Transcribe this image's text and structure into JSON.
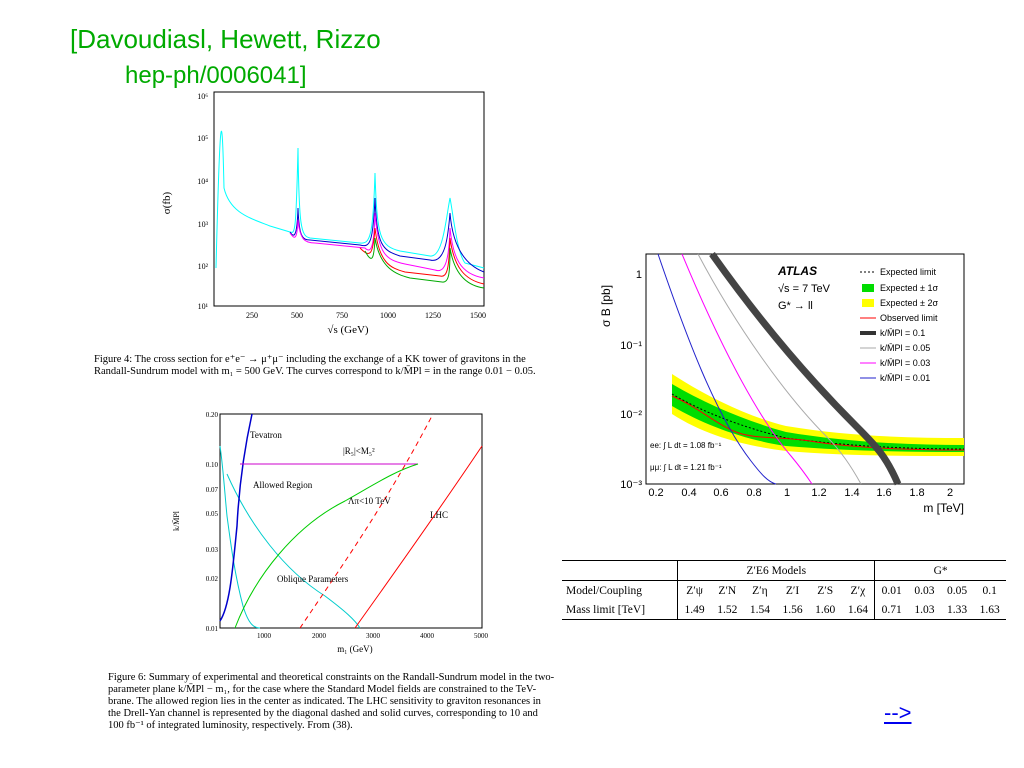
{
  "slide": {
    "title_line1": "[Davoudiasl, Hewett, Rizzo",
    "title_line2": "hep-ph/0006041]",
    "next_link": "-->"
  },
  "figure4": {
    "caption": "Figure 4: The cross section for e⁺e⁻ → μ⁺μ⁻ including the exchange of a KK tower of gravitons in the Randall-Sundrum model with m₁ = 500 GeV. The curves correspond to k/M̄Pl = in the range 0.01 − 0.05.",
    "ylabel": "σ(fb)",
    "xlabel": "√s (GeV)",
    "xticks": [
      "250",
      "500",
      "750",
      "1000",
      "1250",
      "1500"
    ],
    "yticks": [
      "10⁶",
      "10⁵",
      "10⁴",
      "10³",
      "10²",
      "10¹"
    ]
  },
  "figure6": {
    "caption": "Figure 6: Summary of experimental and theoretical constraints on the Randall-Sundrum model in the two-parameter plane k/M̄Pl − m₁, for the case where the Standard Model fields are constrained to the TeV-brane. The allowed region lies in the center as indicated. The LHC sensitivity to graviton resonances in the Drell-Yan channel is represented by the diagonal dashed and solid curves, corresponding to 10 and 100 fb⁻¹ of integrated luminosity, respectively. From (38).",
    "ylabel": "k/M̄Pl",
    "xlabel": "m₁ (GeV)",
    "xticks": [
      "1000",
      "2000",
      "3000",
      "4000",
      "5000"
    ],
    "yticks": [
      "0.20",
      "0.10",
      "0.07",
      "0.05",
      "0.03",
      "0.02",
      "0.01"
    ],
    "labels": {
      "tevatron": "Tevatron",
      "r5": "|R₅|<M₅²",
      "allowed": "Allowed Region",
      "lambda": "Λπ<10 TeV",
      "lhc": "LHC",
      "oblique": "Oblique Parameters"
    }
  },
  "atlas": {
    "ylabel": "σ B [pb]",
    "xlabel": "m [TeV]",
    "brand": "ATLAS",
    "energy": "√s = 7 TeV",
    "process": "G* → ll",
    "lumi_ee": "ee: ∫ L dt = 1.08 fb⁻¹",
    "lumi_mumu": "μμ: ∫ L dt = 1.21 fb⁻¹",
    "xticks": [
      "0.2",
      "0.4",
      "0.6",
      "0.8",
      "1",
      "1.2",
      "1.4",
      "1.6",
      "1.8",
      "2"
    ],
    "yticks": [
      "1",
      "10⁻¹",
      "10⁻²",
      "10⁻³"
    ],
    "legend": [
      {
        "label": "Expected limit",
        "color": "#000000",
        "style": "dotted"
      },
      {
        "label": "Expected ± 1σ",
        "color": "#00dd00",
        "style": "box"
      },
      {
        "label": "Expected ± 2σ",
        "color": "#ffff00",
        "style": "box"
      },
      {
        "label": "Observed limit",
        "color": "#ff0000",
        "style": "line"
      },
      {
        "label": "k/M̄Pl = 0.1",
        "color": "#333333",
        "style": "thick"
      },
      {
        "label": "k/M̄Pl = 0.05",
        "color": "#aaaaaa",
        "style": "line"
      },
      {
        "label": "k/M̄Pl = 0.03",
        "color": "#ff00ff",
        "style": "line"
      },
      {
        "label": "k/M̄Pl = 0.01",
        "color": "#2222cc",
        "style": "line"
      }
    ]
  },
  "table": {
    "group1": "Z′E6 Models",
    "group2": "G*",
    "row1_label": "Model/Coupling",
    "row2_label": "Mass limit [TeV]",
    "models": [
      "Z′ψ",
      "Z′N",
      "Z′η",
      "Z′I",
      "Z′S",
      "Z′χ"
    ],
    "couplings": [
      "0.01",
      "0.03",
      "0.05",
      "0.1"
    ],
    "z_limits": [
      "1.49",
      "1.52",
      "1.54",
      "1.56",
      "1.60",
      "1.64"
    ],
    "g_limits": [
      "0.71",
      "1.03",
      "1.33",
      "1.63"
    ]
  }
}
